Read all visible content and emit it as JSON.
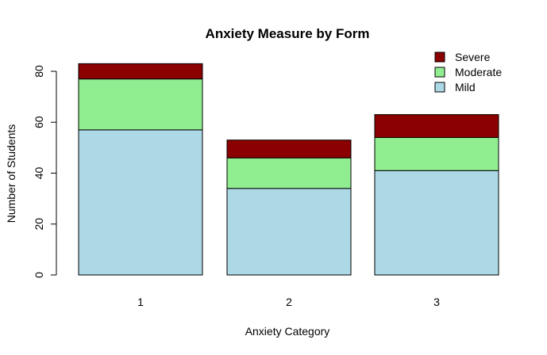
{
  "chart_data": {
    "type": "bar",
    "stacked": true,
    "title": "Anxiety Measure by Form",
    "xlabel": "Anxiety Category",
    "ylabel": "Number of Students",
    "categories": [
      "1",
      "2",
      "3"
    ],
    "ylim": [
      0,
      80
    ],
    "yticks": [
      0,
      20,
      40,
      60,
      80
    ],
    "grid": false,
    "legend_position": "top-right",
    "series": [
      {
        "name": "Mild",
        "color": "#add8e6",
        "values": [
          57,
          34,
          41
        ]
      },
      {
        "name": "Moderate",
        "color": "#90ee90",
        "values": [
          20,
          12,
          13
        ]
      },
      {
        "name": "Severe",
        "color": "#8b0000",
        "values": [
          6,
          7,
          9
        ]
      }
    ],
    "legend_order": [
      "Severe",
      "Moderate",
      "Mild"
    ]
  }
}
